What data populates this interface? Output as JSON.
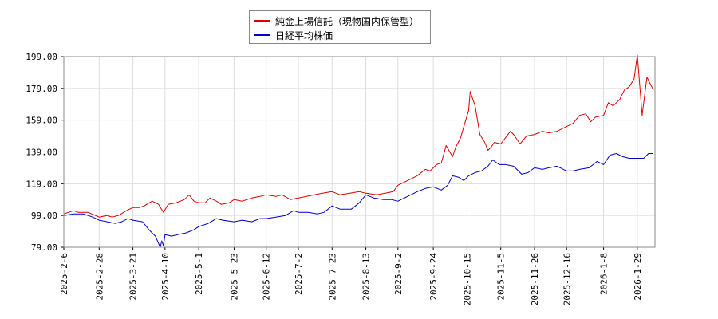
{
  "chart_data": {
    "type": "line",
    "title": "",
    "xlabel": "",
    "ylabel": "",
    "ylim": [
      79,
      205
    ],
    "y_ticks": [
      "79.00",
      "99.00",
      "119.00",
      "139.00",
      "159.00",
      "179.00",
      "199.00"
    ],
    "x_tick_labels": [
      "2025-2-6",
      "2025-2-28",
      "2025-3-21",
      "2025-4-10",
      "2025-5-1",
      "2025-5-23",
      "2025-6-12",
      "2025-7-2",
      "2025-7-23",
      "2025-8-13",
      "2025-9-2",
      "2025-9-24",
      "2025-10-15",
      "2025-11-5",
      "2025-11-26",
      "2025-12-16",
      "2026-1-8",
      "2026-1-29"
    ],
    "x_range": [
      "2025-02-06",
      "2026-02-09"
    ],
    "grid": true,
    "legend_position": "top-center",
    "series": [
      {
        "name": "純金上場信託（現物国内保管型）",
        "color": "#dd0000",
        "points": [
          [
            "2025-02-06",
            100
          ],
          [
            "2025-02-12",
            102
          ],
          [
            "2025-02-15",
            101
          ],
          [
            "2025-02-21",
            101
          ],
          [
            "2025-02-28",
            98
          ],
          [
            "2025-03-05",
            99
          ],
          [
            "2025-03-08",
            98
          ],
          [
            "2025-03-12",
            99
          ],
          [
            "2025-03-17",
            102
          ],
          [
            "2025-03-21",
            104
          ],
          [
            "2025-03-25",
            104
          ],
          [
            "2025-03-28",
            105
          ],
          [
            "2025-04-02",
            108
          ],
          [
            "2025-04-06",
            106
          ],
          [
            "2025-04-09",
            101
          ],
          [
            "2025-04-12",
            106
          ],
          [
            "2025-04-17",
            107
          ],
          [
            "2025-04-22",
            109
          ],
          [
            "2025-04-25",
            112
          ],
          [
            "2025-04-28",
            108
          ],
          [
            "2025-05-01",
            107
          ],
          [
            "2025-05-05",
            107
          ],
          [
            "2025-05-08",
            110
          ],
          [
            "2025-05-12",
            108
          ],
          [
            "2025-05-15",
            106
          ],
          [
            "2025-05-20",
            107
          ],
          [
            "2025-05-23",
            109
          ],
          [
            "2025-05-28",
            108
          ],
          [
            "2025-06-03",
            110
          ],
          [
            "2025-06-08",
            111
          ],
          [
            "2025-06-12",
            112
          ],
          [
            "2025-06-18",
            111
          ],
          [
            "2025-06-22",
            112
          ],
          [
            "2025-06-27",
            109
          ],
          [
            "2025-07-02",
            110
          ],
          [
            "2025-07-07",
            111
          ],
          [
            "2025-07-12",
            112
          ],
          [
            "2025-07-17",
            113
          ],
          [
            "2025-07-23",
            114
          ],
          [
            "2025-07-28",
            112
          ],
          [
            "2025-08-03",
            113
          ],
          [
            "2025-08-09",
            114
          ],
          [
            "2025-08-13",
            113
          ],
          [
            "2025-08-20",
            112
          ],
          [
            "2025-08-25",
            113
          ],
          [
            "2025-08-30",
            114
          ],
          [
            "2025-09-02",
            118
          ],
          [
            "2025-09-08",
            121
          ],
          [
            "2025-09-14",
            124
          ],
          [
            "2025-09-19",
            128
          ],
          [
            "2025-09-22",
            127
          ],
          [
            "2025-09-26",
            131
          ],
          [
            "2025-09-29",
            132
          ],
          [
            "2025-10-02",
            143
          ],
          [
            "2025-10-06",
            136
          ],
          [
            "2025-10-08",
            142
          ],
          [
            "2025-10-11",
            148
          ],
          [
            "2025-10-13",
            155
          ],
          [
            "2025-10-16",
            165
          ],
          [
            "2025-10-17",
            177
          ],
          [
            "2025-10-20",
            168
          ],
          [
            "2025-10-23",
            150
          ],
          [
            "2025-10-26",
            145
          ],
          [
            "2025-10-28",
            140
          ],
          [
            "2025-10-30",
            142
          ],
          [
            "2025-11-01",
            145
          ],
          [
            "2025-11-05",
            144
          ],
          [
            "2025-11-08",
            148
          ],
          [
            "2025-11-11",
            152
          ],
          [
            "2025-11-13",
            150
          ],
          [
            "2025-11-17",
            144
          ],
          [
            "2025-11-21",
            149
          ],
          [
            "2025-11-26",
            150
          ],
          [
            "2025-12-01",
            152
          ],
          [
            "2025-12-05",
            151
          ],
          [
            "2025-12-10",
            152
          ],
          [
            "2025-12-16",
            155
          ],
          [
            "2025-12-20",
            157
          ],
          [
            "2025-12-24",
            162
          ],
          [
            "2025-12-28",
            163
          ],
          [
            "2025-12-31",
            158
          ],
          [
            "2026-01-03",
            161
          ],
          [
            "2026-01-08",
            162
          ],
          [
            "2026-01-11",
            170
          ],
          [
            "2026-01-14",
            168
          ],
          [
            "2026-01-18",
            172
          ],
          [
            "2026-01-21",
            178
          ],
          [
            "2026-01-24",
            180
          ],
          [
            "2026-01-27",
            185
          ],
          [
            "2026-01-29",
            200
          ],
          [
            "2026-02-01",
            162
          ],
          [
            "2026-02-04",
            186
          ],
          [
            "2026-02-08",
            178
          ]
        ]
      },
      {
        "name": "日経平均株価",
        "color": "#0000cc",
        "points": [
          [
            "2025-02-06",
            99
          ],
          [
            "2025-02-12",
            100
          ],
          [
            "2025-02-18",
            100
          ],
          [
            "2025-02-24",
            98
          ],
          [
            "2025-02-28",
            96
          ],
          [
            "2025-03-05",
            95
          ],
          [
            "2025-03-10",
            94
          ],
          [
            "2025-03-14",
            95
          ],
          [
            "2025-03-18",
            97
          ],
          [
            "2025-03-21",
            96
          ],
          [
            "2025-03-27",
            95
          ],
          [
            "2025-03-31",
            90
          ],
          [
            "2025-04-04",
            86
          ],
          [
            "2025-04-07",
            79
          ],
          [
            "2025-04-08",
            83
          ],
          [
            "2025-04-09",
            80
          ],
          [
            "2025-04-10",
            87
          ],
          [
            "2025-04-14",
            86
          ],
          [
            "2025-04-18",
            87
          ],
          [
            "2025-04-23",
            88
          ],
          [
            "2025-04-28",
            90
          ],
          [
            "2025-05-01",
            92
          ],
          [
            "2025-05-07",
            94
          ],
          [
            "2025-05-12",
            97
          ],
          [
            "2025-05-16",
            96
          ],
          [
            "2025-05-23",
            95
          ],
          [
            "2025-05-28",
            96
          ],
          [
            "2025-06-03",
            95
          ],
          [
            "2025-06-08",
            97
          ],
          [
            "2025-06-12",
            97
          ],
          [
            "2025-06-18",
            98
          ],
          [
            "2025-06-24",
            99
          ],
          [
            "2025-06-29",
            102
          ],
          [
            "2025-07-02",
            101
          ],
          [
            "2025-07-08",
            101
          ],
          [
            "2025-07-14",
            100
          ],
          [
            "2025-07-18",
            101
          ],
          [
            "2025-07-23",
            105
          ],
          [
            "2025-07-28",
            103
          ],
          [
            "2025-08-04",
            103
          ],
          [
            "2025-08-09",
            107
          ],
          [
            "2025-08-13",
            112
          ],
          [
            "2025-08-18",
            110
          ],
          [
            "2025-08-24",
            109
          ],
          [
            "2025-08-29",
            109
          ],
          [
            "2025-09-02",
            108
          ],
          [
            "2025-09-08",
            111
          ],
          [
            "2025-09-14",
            114
          ],
          [
            "2025-09-19",
            116
          ],
          [
            "2025-09-24",
            117
          ],
          [
            "2025-09-29",
            115
          ],
          [
            "2025-10-03",
            118
          ],
          [
            "2025-10-06",
            124
          ],
          [
            "2025-10-10",
            123
          ],
          [
            "2025-10-13",
            121
          ],
          [
            "2025-10-16",
            124
          ],
          [
            "2025-10-20",
            126
          ],
          [
            "2025-10-24",
            127
          ],
          [
            "2025-10-28",
            130
          ],
          [
            "2025-10-31",
            134
          ],
          [
            "2025-11-04",
            131
          ],
          [
            "2025-11-08",
            131
          ],
          [
            "2025-11-13",
            130
          ],
          [
            "2025-11-18",
            125
          ],
          [
            "2025-11-22",
            126
          ],
          [
            "2025-11-26",
            129
          ],
          [
            "2025-12-01",
            128
          ],
          [
            "2025-12-05",
            129
          ],
          [
            "2025-12-10",
            130
          ],
          [
            "2025-12-16",
            127
          ],
          [
            "2025-12-20",
            127
          ],
          [
            "2025-12-24",
            128
          ],
          [
            "2025-12-30",
            129
          ],
          [
            "2026-01-04",
            133
          ],
          [
            "2026-01-08",
            131
          ],
          [
            "2026-01-12",
            137
          ],
          [
            "2026-01-16",
            138
          ],
          [
            "2026-01-20",
            136
          ],
          [
            "2026-01-24",
            135
          ],
          [
            "2026-01-29",
            135
          ],
          [
            "2026-02-02",
            135
          ],
          [
            "2026-02-05",
            138
          ],
          [
            "2026-02-08",
            138
          ]
        ]
      }
    ]
  }
}
